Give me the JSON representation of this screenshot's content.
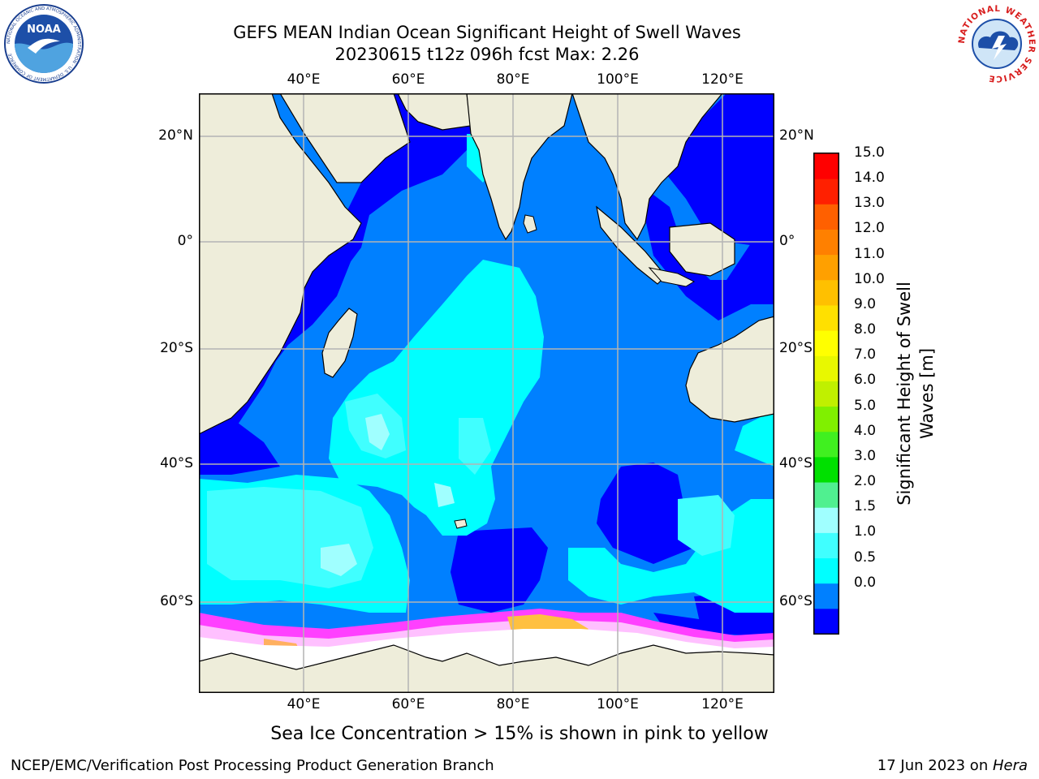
{
  "title": {
    "line1": "GEFS MEAN Indian Ocean Significant Height of Swell Waves",
    "line2": "20230615 t12z 096h fcst   Max: 2.26"
  },
  "map": {
    "lon_labels_top": [
      "40°E",
      "60°E",
      "80°E",
      "100°E",
      "120°E"
    ],
    "lon_labels_bottom": [
      "40°E",
      "60°E",
      "80°E",
      "100°E",
      "120°E"
    ],
    "lat_labels_left": [
      "20°N",
      "0°",
      "20°S",
      "40°S",
      "60°S"
    ],
    "lat_labels_right": [
      "20°N",
      "0°",
      "20°S",
      "40°S",
      "60°S"
    ],
    "colors": {
      "land": "#eeedda",
      "ice": "#ffffff",
      "grid": "#b4b4b4"
    }
  },
  "colorbar": {
    "title_line1": "Significant Height of Swell",
    "title_line2": "Waves [m]",
    "ticks": [
      "15.0",
      "14.0",
      "13.0",
      "12.0",
      "11.0",
      "10.0",
      "9.0",
      "8.0",
      "7.0",
      "6.0",
      "5.0",
      "4.0",
      "3.0",
      "2.0",
      "1.5",
      "1.0",
      "0.5",
      "0.0"
    ],
    "colors": [
      "#0000ff",
      "#0080ff",
      "#00ffff",
      "#40ffff",
      "#a0ffff",
      "#50f090",
      "#00e000",
      "#40f020",
      "#80f000",
      "#c0f000",
      "#e8f800",
      "#ffff00",
      "#ffe000",
      "#ffc000",
      "#ffa000",
      "#ff8000",
      "#ff6000",
      "#ff2000",
      "#ff0000"
    ]
  },
  "subcaption": "Sea Ice Concentration > 15% is shown in pink to yellow",
  "footer": {
    "left": "NCEP/EMC/Verification Post Processing Product Generation Branch",
    "right_prefix": "17 Jun 2023 on ",
    "right_host": "Hera"
  },
  "logos": {
    "noaa_text": "NOAA",
    "noaa_ring": "NATIONAL OCEANIC AND ATMOSPHERIC ADMINISTRATION · U.S. DEPARTMENT OF COMMERCE",
    "nws_ring": "NATIONAL WEATHER SERVICE"
  }
}
